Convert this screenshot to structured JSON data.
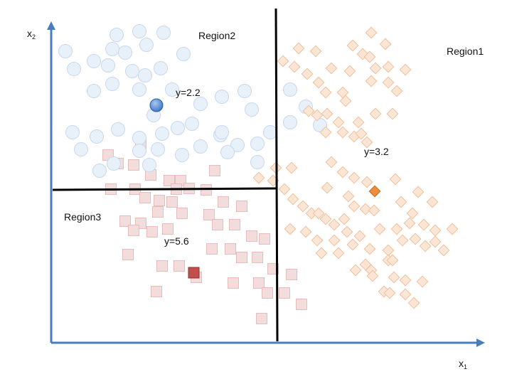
{
  "axes": {
    "x_label": "x",
    "x_sub": "1",
    "y_label": "x",
    "y_sub": "2",
    "axis_color": "#4a7ebb"
  },
  "regions": {
    "region1": "Region1",
    "region2": "Region2",
    "region3": "Region3"
  },
  "predictions": {
    "region1": "y=3.2",
    "region2": "y=2.2",
    "region3": "y=5.6"
  },
  "colors": {
    "circle_fill": "#e8f0f9",
    "circle_stroke": "#c8d9ee",
    "diamond_fill": "#fbe6d6",
    "diamond_stroke": "#efbf9c",
    "square_fill": "#f3dcdc",
    "square_stroke": "#e6bcbc",
    "highlight_circle": "#4f86d6",
    "highlight_diamond": "#ef8b3c",
    "highlight_square": "#c0504d",
    "split_line": "#000000"
  },
  "markers": {
    "region1_shape": "diamond",
    "region2_shape": "circle",
    "region3_shape": "square"
  }
}
